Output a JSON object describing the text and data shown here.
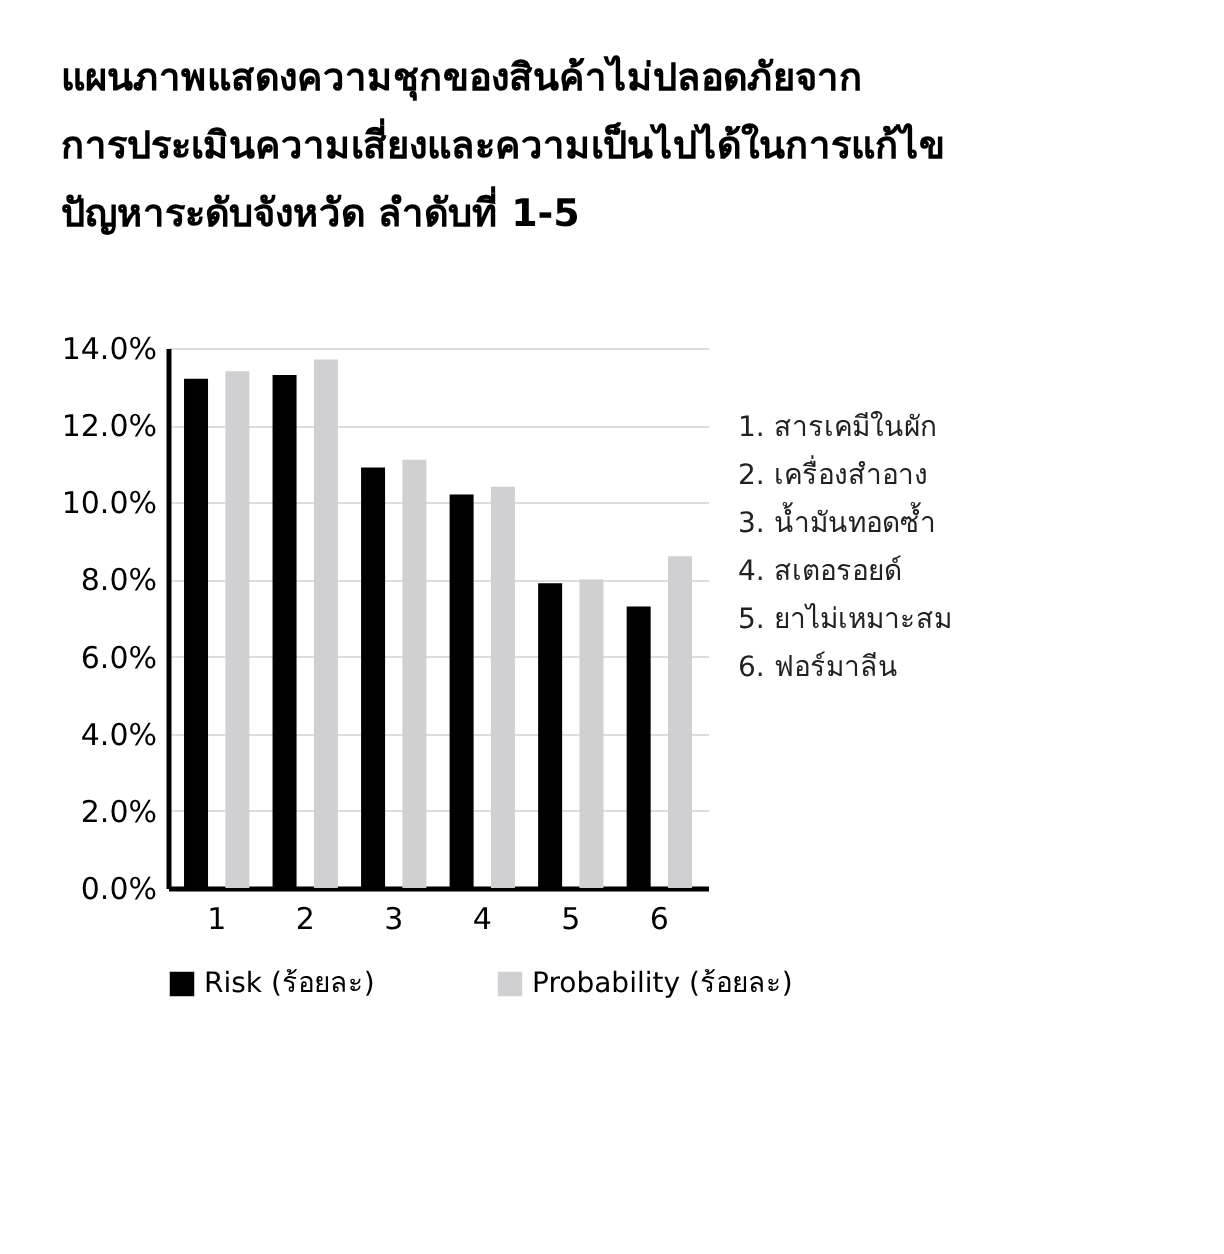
{
  "chart_data": {
    "type": "bar",
    "title": "แผนภาพแสดงความชุกของสินค้าไม่ปลอดภัยจาก\nการประเมินความเสี่ยงและความเป็นไปได้ในการแก้ไข\nปัญหาระดับจังหวัด ลำดับที่ 1-5",
    "categories": [
      "1",
      "2",
      "3",
      "4",
      "5",
      "6"
    ],
    "series": [
      {
        "name": "Risk (ร้อยละ)",
        "color": "#000000",
        "values": [
          13.2,
          13.3,
          10.9,
          10.2,
          7.9,
          7.3
        ]
      },
      {
        "name": "Probability (ร้อยละ)",
        "color": "#d0d0d2",
        "values": [
          13.4,
          13.7,
          11.1,
          10.4,
          8.0,
          8.6
        ]
      }
    ],
    "ylim": [
      0,
      14
    ],
    "yticks": [
      {
        "value": 0,
        "label": "0.0%"
      },
      {
        "value": 2,
        "label": "2.0%"
      },
      {
        "value": 4,
        "label": "4.0%"
      },
      {
        "value": 6,
        "label": "6.0%"
      },
      {
        "value": 8,
        "label": "8.0%"
      },
      {
        "value": 10,
        "label": "10.0%"
      },
      {
        "value": 12,
        "label": "12.0%"
      },
      {
        "value": 14,
        "label": "14.0%"
      }
    ],
    "grid": "y",
    "legend": "bottom",
    "annotations": [
      "1. สารเคมีในผัก",
      "2. เครื่องสำอาง",
      "3. น้ำมันทอดซ้ำ",
      "4. สเตอรอยด์",
      "5. ยาไม่เหมาะสม",
      "6. ฟอร์มาลีน"
    ]
  }
}
